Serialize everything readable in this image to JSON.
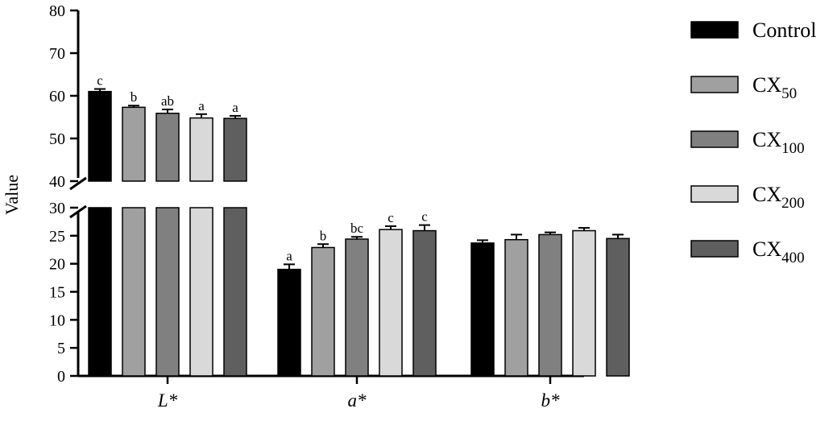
{
  "chart_data": {
    "type": "bar",
    "title": "",
    "ylabel": "Value",
    "xlabel": "",
    "y_axis_break": [
      30,
      40
    ],
    "ylim_lower": [
      0,
      30
    ],
    "ylim_upper": [
      40,
      80
    ],
    "yticks_lower": [
      "0",
      "5",
      "10",
      "15",
      "20",
      "25",
      "30"
    ],
    "yticks_upper": [
      "40",
      "50",
      "60",
      "70",
      "80"
    ],
    "categories": [
      "L*",
      "a*",
      "b*"
    ],
    "series": [
      {
        "name": "Control",
        "sub": "",
        "color": "#000000",
        "values": [
          61.0,
          19.0,
          23.7
        ],
        "errors": [
          0.6,
          0.9,
          0.5
        ],
        "sig": [
          "c",
          "a",
          ""
        ]
      },
      {
        "name": "CX",
        "sub": "50",
        "color": "#a0a0a0",
        "values": [
          57.3,
          22.9,
          24.3
        ],
        "errors": [
          0.4,
          0.6,
          0.9
        ],
        "sig": [
          "b",
          "b",
          ""
        ]
      },
      {
        "name": "CX",
        "sub": "100",
        "color": "#808080",
        "values": [
          55.9,
          24.4,
          25.2
        ],
        "errors": [
          0.9,
          0.4,
          0.4
        ],
        "sig": [
          "ab",
          "bc",
          ""
        ]
      },
      {
        "name": "CX",
        "sub": "200",
        "color": "#d9d9d9",
        "values": [
          54.8,
          26.1,
          25.9
        ],
        "errors": [
          0.9,
          0.6,
          0.5
        ],
        "sig": [
          "a",
          "c",
          ""
        ]
      },
      {
        "name": "CX",
        "sub": "400",
        "color": "#5f5f5f",
        "values": [
          54.7,
          25.9,
          24.5
        ],
        "errors": [
          0.6,
          1.0,
          0.7
        ],
        "sig": [
          "a",
          "c",
          ""
        ]
      }
    ],
    "legend_position": "right",
    "grid": false
  }
}
